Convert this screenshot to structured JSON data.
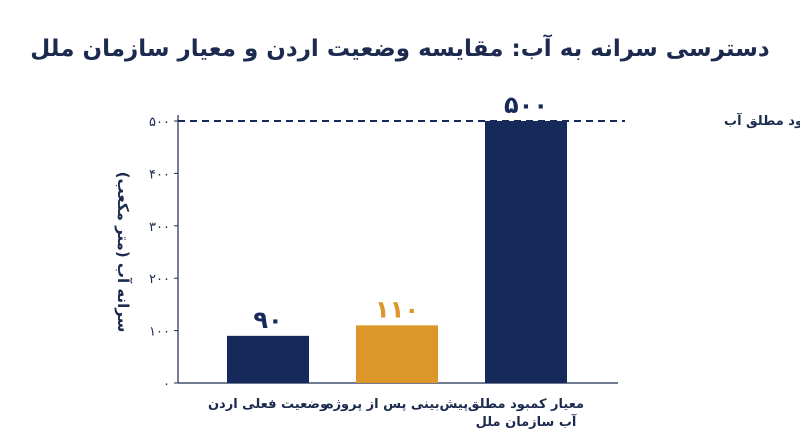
{
  "chart_data": {
    "type": "bar",
    "title": "دسترسی سرانه به آب: مقایسه وضعیت اردن و معیار سازمان ملل",
    "ylabel": "سرانه آب (متر مکعب)",
    "xlabel": "",
    "ylim": [
      0,
      500
    ],
    "yticks": [
      {
        "value": 0,
        "label": "0"
      },
      {
        "value": 100,
        "label": "100"
      },
      {
        "value": 200,
        "label": "200"
      },
      {
        "value": 300,
        "label": "300"
      },
      {
        "value": 400,
        "label": "400"
      },
      {
        "value": 500,
        "label": "500"
      }
    ],
    "categories": [
      [
        "وضعیت فعلی اردن"
      ],
      [
        "پیش‌بینی پس از پروژه"
      ],
      [
        "معیار کمبود مطلق",
        "آب سازمان ملل"
      ]
    ],
    "values": [
      90,
      110,
      500
    ],
    "value_labels": [
      "۹۰",
      "۱۱۰",
      "۵۰۰"
    ],
    "colors": [
      "#15295a",
      "#dd962a",
      "#15295a"
    ],
    "label_colors": [
      "#15295a",
      "#dd962a",
      "#15295a"
    ],
    "reference_line": {
      "value": 500,
      "label": "کمبود مطلق آب",
      "style": "dashed"
    },
    "grid": false,
    "legend": "none"
  }
}
